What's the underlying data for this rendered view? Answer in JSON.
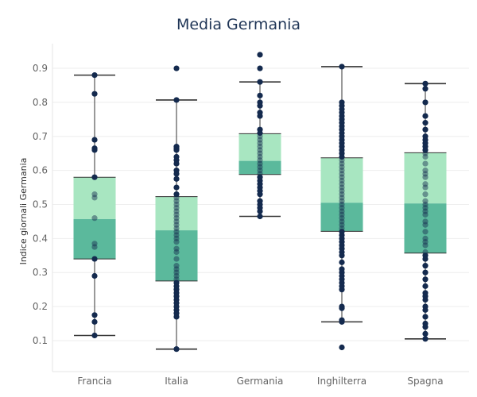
{
  "chart_data": {
    "type": "boxplot",
    "title": "Media Germania",
    "ylabel": "Indice giornali Germania",
    "xlabel": "",
    "ylim": [
      0.0,
      0.97
    ],
    "yticks": [
      0.1,
      0.2,
      0.3,
      0.4,
      0.5,
      0.6,
      0.7,
      0.8,
      0.9
    ],
    "grid": "horizontal",
    "colors": {
      "box_upper": "#a8e6c1",
      "box_lower": "#5bb99c",
      "point": "#142a4e",
      "whisker": "#333333",
      "grid": "#eeeeee"
    },
    "categories": [
      "Francia",
      "Italia",
      "Germania",
      "Inghilterra",
      "Spagna"
    ],
    "boxes": [
      {
        "category": "Francia",
        "whisker_low": 0.115,
        "q1": 0.34,
        "median": 0.457,
        "q3": 0.58,
        "whisker_high": 0.88,
        "points": [
          0.88,
          0.825,
          0.69,
          0.665,
          0.66,
          0.58,
          0.53,
          0.52,
          0.46,
          0.385,
          0.375,
          0.34,
          0.29,
          0.175,
          0.155,
          0.115
        ]
      },
      {
        "category": "Italia",
        "whisker_low": 0.075,
        "q1": 0.275,
        "median": 0.424,
        "q3": 0.523,
        "whisker_high": 0.807,
        "points": [
          0.9,
          0.807,
          0.67,
          0.665,
          0.66,
          0.64,
          0.63,
          0.62,
          0.6,
          0.59,
          0.575,
          0.55,
          0.53,
          0.52,
          0.51,
          0.5,
          0.49,
          0.48,
          0.47,
          0.46,
          0.45,
          0.44,
          0.43,
          0.42,
          0.41,
          0.4,
          0.39,
          0.37,
          0.36,
          0.34,
          0.32,
          0.31,
          0.3,
          0.29,
          0.28,
          0.27,
          0.26,
          0.25,
          0.24,
          0.23,
          0.22,
          0.21,
          0.2,
          0.19,
          0.18,
          0.17,
          0.075
        ]
      },
      {
        "category": "Germania",
        "whisker_low": 0.465,
        "q1": 0.588,
        "median": 0.628,
        "q3": 0.708,
        "whisker_high": 0.86,
        "points": [
          0.94,
          0.9,
          0.86,
          0.82,
          0.8,
          0.79,
          0.77,
          0.76,
          0.72,
          0.71,
          0.7,
          0.69,
          0.68,
          0.67,
          0.66,
          0.65,
          0.64,
          0.63,
          0.62,
          0.61,
          0.6,
          0.59,
          0.58,
          0.57,
          0.56,
          0.55,
          0.54,
          0.53,
          0.51,
          0.5,
          0.49,
          0.48,
          0.465
        ]
      },
      {
        "category": "Inghilterra",
        "whisker_low": 0.155,
        "q1": 0.421,
        "median": 0.505,
        "q3": 0.637,
        "whisker_high": 0.905,
        "points": [
          0.905,
          0.8,
          0.79,
          0.78,
          0.77,
          0.76,
          0.75,
          0.74,
          0.73,
          0.72,
          0.71,
          0.7,
          0.69,
          0.68,
          0.67,
          0.66,
          0.65,
          0.64,
          0.63,
          0.62,
          0.61,
          0.6,
          0.59,
          0.58,
          0.57,
          0.56,
          0.55,
          0.54,
          0.53,
          0.52,
          0.51,
          0.5,
          0.49,
          0.48,
          0.47,
          0.46,
          0.45,
          0.44,
          0.43,
          0.42,
          0.41,
          0.4,
          0.39,
          0.38,
          0.37,
          0.36,
          0.35,
          0.33,
          0.31,
          0.3,
          0.29,
          0.28,
          0.27,
          0.26,
          0.25,
          0.2,
          0.195,
          0.16,
          0.155,
          0.08
        ]
      },
      {
        "category": "Spagna",
        "whisker_low": 0.105,
        "q1": 0.357,
        "median": 0.503,
        "q3": 0.652,
        "whisker_high": 0.855,
        "points": [
          0.855,
          0.84,
          0.8,
          0.76,
          0.74,
          0.72,
          0.7,
          0.69,
          0.68,
          0.67,
          0.66,
          0.65,
          0.64,
          0.62,
          0.6,
          0.59,
          0.58,
          0.56,
          0.55,
          0.53,
          0.51,
          0.5,
          0.49,
          0.48,
          0.47,
          0.45,
          0.44,
          0.42,
          0.4,
          0.39,
          0.38,
          0.36,
          0.35,
          0.34,
          0.32,
          0.3,
          0.28,
          0.26,
          0.24,
          0.23,
          0.22,
          0.2,
          0.19,
          0.17,
          0.15,
          0.14,
          0.12,
          0.105
        ]
      }
    ]
  }
}
